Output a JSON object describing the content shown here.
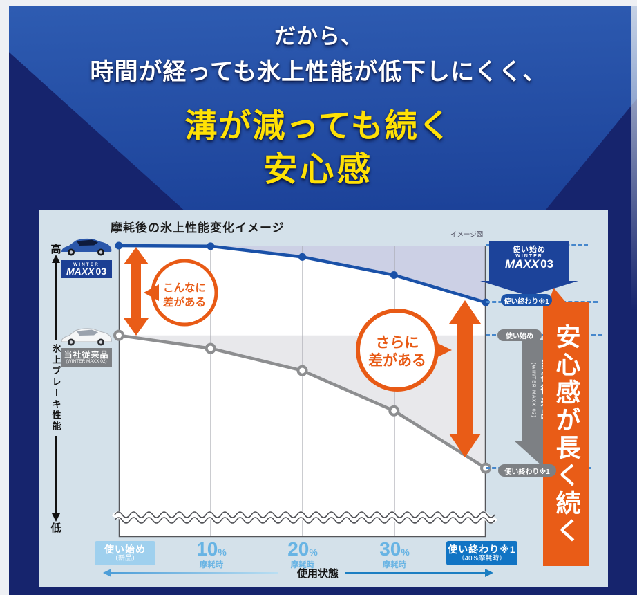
{
  "header": {
    "line1": "だから、",
    "line2": "時間が経っても氷上性能が低下しにくく、",
    "line3": "溝が減っても続く",
    "line4": "安心感"
  },
  "panel": {
    "title": "摩耗後の氷上性能変化イメージ",
    "note": "イメージ図",
    "y_axis": {
      "high": "高",
      "low": "低",
      "label": "氷上ブレーキ性能"
    },
    "x_axis": {
      "label": "使用状態",
      "start_tick": {
        "main": "使い始め",
        "sub": "（新品）"
      },
      "wear_ticks": [
        {
          "num": "10",
          "unit": "%",
          "label": "摩耗時"
        },
        {
          "num": "20",
          "unit": "%",
          "label": "摩耗時"
        },
        {
          "num": "30",
          "unit": "%",
          "label": "摩耗時"
        }
      ],
      "end_tick": {
        "main": "使い終わり※1",
        "sub": "（40%摩耗時）"
      }
    },
    "maxx03": {
      "brand_top": "WINTER",
      "brand": "MAXX",
      "num": "03"
    },
    "conventional": {
      "name": "当社従来品",
      "sub": "(WINTER MAXX 02)"
    },
    "markers": {
      "blue_start": "使い始め",
      "blue_end": "使い終わり※1",
      "gray_start": "使い始め",
      "gray_end": "使い終わり※1"
    },
    "annotations": {
      "circle1_line1": "こんなに",
      "circle1_line2": "差がある",
      "circle2_line1": "さらに",
      "circle2_line2": "差がある"
    },
    "side_banner": "安心感が長く続く"
  },
  "chart_data": {
    "type": "line",
    "title": "摩耗後の氷上性能変化イメージ",
    "note": "イメージ図 (conceptual image chart, no numeric axis shown)",
    "x_categories": [
      "使い始め（新品）",
      "10%摩耗時",
      "20%摩耗時",
      "30%摩耗時",
      "使い終わり※1（40%摩耗時）"
    ],
    "xlabel": "使用状態",
    "ylabel": "氷上ブレーキ性能（高←→低）",
    "ylim": [
      0,
      100
    ],
    "grid": "vertical-only",
    "series": [
      {
        "name": "WINTER MAXX 03",
        "color": "#1a51a8",
        "values": [
          100,
          99.8,
          96.1,
          89.9,
          80.5
        ]
      },
      {
        "name": "当社従来品 (WINTER MAXX 02)",
        "color": "#8d8e90",
        "values": [
          69.2,
          64.7,
          57.1,
          43.3,
          23.6
        ]
      }
    ]
  },
  "colors": {
    "navy": "#16246d",
    "yellow": "#ffe105",
    "accent_orange": "#e95c17",
    "blue_line": "#1a51a8",
    "gray_line": "#8d8e90",
    "panel_bg": "#d4e1ea",
    "lavender_fill": "#ccd0e5",
    "gray_fill": "#e8e8eb",
    "light_blue_box": "#9fd0ee",
    "dark_blue_box": "#1174c4",
    "badge_blue": "#1c3f94",
    "badge_gray": "#7d8084"
  }
}
